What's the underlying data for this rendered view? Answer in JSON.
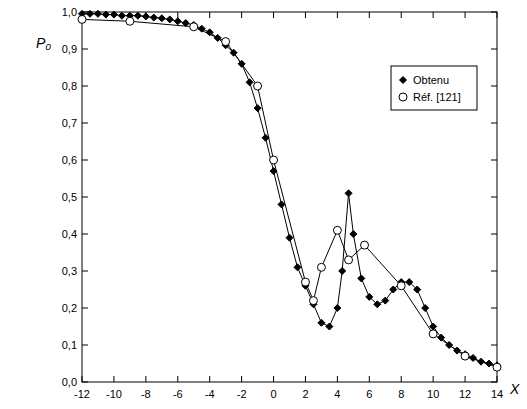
{
  "chart_data": {
    "type": "line",
    "x_label": "X",
    "y_label": "P₀",
    "xlim": [
      -12,
      14
    ],
    "ylim": [
      0,
      1
    ],
    "xticks": [
      -12,
      -10,
      -8,
      -6,
      -4,
      -2,
      0,
      2,
      4,
      6,
      8,
      10,
      12,
      14
    ],
    "yticks": [
      {
        "value": 0,
        "label": "0,0"
      },
      {
        "value": 0.1,
        "label": "0,1"
      },
      {
        "value": 0.2,
        "label": "0,2"
      },
      {
        "value": 0.3,
        "label": "0,3"
      },
      {
        "value": 0.4,
        "label": "0,4"
      },
      {
        "value": 0.5,
        "label": "0,5"
      },
      {
        "value": 0.6,
        "label": "0,6"
      },
      {
        "value": 0.7,
        "label": "0,7"
      },
      {
        "value": 0.8,
        "label": "0,8"
      },
      {
        "value": 0.9,
        "label": "0,9"
      },
      {
        "value": 1,
        "label": "1,0"
      }
    ],
    "grid": false,
    "legend": "upper right",
    "series": [
      {
        "name": "Obtenu",
        "color": "#000000",
        "marker": "diamond",
        "line_style": "solid",
        "x": [
          -12,
          -11.5,
          -11,
          -10.5,
          -10,
          -9.5,
          -9,
          -8.5,
          -8,
          -7.5,
          -7,
          -6.5,
          -6,
          -5.5,
          -5,
          -4.5,
          -4,
          -3.5,
          -3,
          -2.5,
          -2,
          -1.5,
          -1,
          -0.5,
          0,
          0.5,
          1,
          1.5,
          2,
          2.5,
          3,
          3.5,
          4,
          4.3,
          4.7,
          5,
          5.5,
          6,
          6.5,
          7,
          7.5,
          8,
          8.5,
          9,
          9.5,
          10,
          10.5,
          11,
          11.5,
          12,
          12.5,
          13,
          13.5,
          14
        ],
        "values": [
          0.995,
          0.995,
          0.995,
          0.993,
          0.993,
          0.99,
          0.99,
          0.99,
          0.988,
          0.985,
          0.983,
          0.98,
          0.975,
          0.97,
          0.965,
          0.955,
          0.945,
          0.93,
          0.91,
          0.89,
          0.86,
          0.81,
          0.74,
          0.66,
          0.57,
          0.48,
          0.39,
          0.31,
          0.26,
          0.21,
          0.16,
          0.15,
          0.2,
          0.3,
          0.51,
          0.4,
          0.28,
          0.23,
          0.21,
          0.22,
          0.25,
          0.27,
          0.27,
          0.25,
          0.2,
          0.15,
          0.12,
          0.1,
          0.085,
          0.075,
          0.065,
          0.055,
          0.05,
          0.045
        ]
      },
      {
        "name": "Réf. [121]",
        "color": "#000000",
        "marker": "circle",
        "line_style": "solid",
        "x": [
          -12,
          -9,
          -5,
          -3,
          -1,
          0,
          2,
          2.5,
          3,
          4,
          4.7,
          5.7,
          8,
          10,
          12,
          14
        ],
        "values": [
          0.98,
          0.975,
          0.96,
          0.92,
          0.8,
          0.6,
          0.27,
          0.22,
          0.31,
          0.41,
          0.33,
          0.37,
          0.26,
          0.13,
          0.07,
          0.04
        ]
      }
    ]
  }
}
